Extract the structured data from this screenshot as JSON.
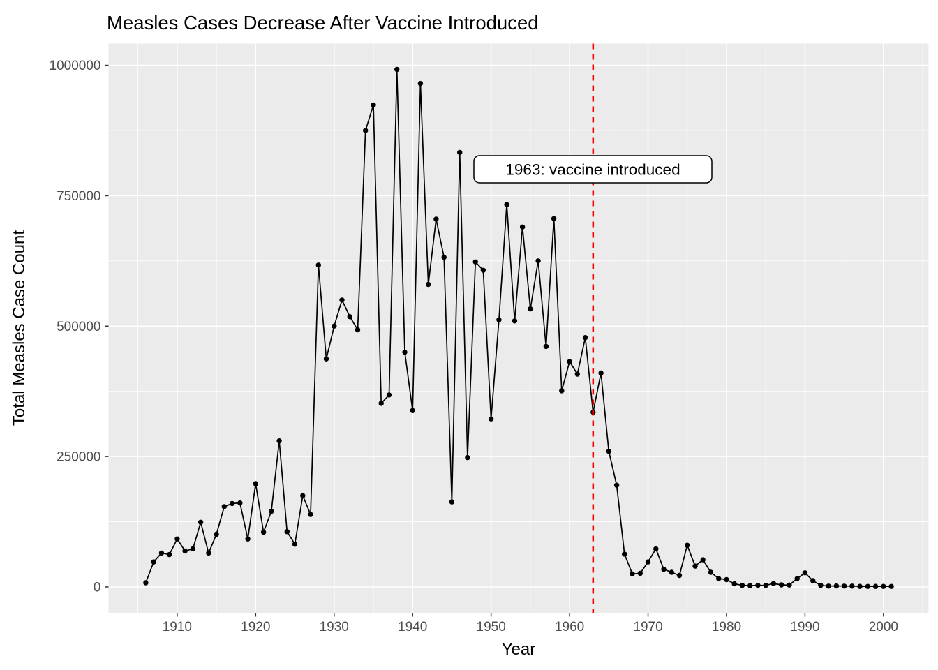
{
  "title": "Measles Cases Decrease After Vaccine Introduced",
  "annotation": {
    "text": "1963: vaccine introduced",
    "year": 1963
  },
  "vline": {
    "year": 1963,
    "color": "#FF0000",
    "style": "dashed"
  },
  "chart_data": {
    "type": "line",
    "title": "Measles Cases Decrease After Vaccine Introduced",
    "xlabel": "Year",
    "ylabel": "Total Measles Case Count",
    "legend": "none",
    "grid": true,
    "marker": "point",
    "series_color": "#000000",
    "panel_bg": "#EBEBEB",
    "grid_color": "#FFFFFF",
    "tick_text_color": "#4D4D4D",
    "xlim": [
      1901.25,
      2005.75
    ],
    "ylim": [
      -49550,
      1041550
    ],
    "x_ticks": [
      1910,
      1920,
      1930,
      1940,
      1950,
      1960,
      1970,
      1980,
      1990,
      2000
    ],
    "x_minor": [
      1905,
      1915,
      1925,
      1935,
      1945,
      1955,
      1965,
      1975,
      1985,
      1995,
      2005
    ],
    "y_ticks": [
      0,
      250000,
      500000,
      750000,
      1000000
    ],
    "y_tick_labels": [
      "0",
      "250000",
      "500000",
      "750000",
      "1000000"
    ],
    "y_minor": [
      125000,
      375000,
      625000,
      875000
    ],
    "x": [
      1906,
      1907,
      1908,
      1909,
      1910,
      1911,
      1912,
      1913,
      1914,
      1915,
      1916,
      1917,
      1918,
      1919,
      1920,
      1921,
      1922,
      1923,
      1924,
      1925,
      1926,
      1927,
      1928,
      1929,
      1930,
      1931,
      1932,
      1933,
      1934,
      1935,
      1936,
      1937,
      1938,
      1939,
      1940,
      1941,
      1942,
      1943,
      1944,
      1945,
      1946,
      1947,
      1948,
      1949,
      1950,
      1951,
      1952,
      1953,
      1954,
      1955,
      1956,
      1957,
      1958,
      1959,
      1960,
      1961,
      1962,
      1963,
      1964,
      1965,
      1966,
      1967,
      1968,
      1969,
      1970,
      1971,
      1972,
      1973,
      1974,
      1975,
      1976,
      1977,
      1978,
      1979,
      1980,
      1981,
      1982,
      1983,
      1984,
      1985,
      1986,
      1987,
      1988,
      1989,
      1990,
      1991,
      1992,
      1993,
      1994,
      1995,
      1996,
      1997,
      1998,
      1999,
      2000,
      2001
    ],
    "y": [
      8000,
      48000,
      65000,
      62000,
      92000,
      69000,
      73000,
      124000,
      65000,
      101000,
      154000,
      160000,
      161000,
      92000,
      198000,
      105000,
      145000,
      280000,
      106000,
      82000,
      175000,
      139000,
      617000,
      437000,
      500000,
      550000,
      518000,
      493000,
      875000,
      924000,
      352000,
      368000,
      992000,
      450000,
      338000,
      965000,
      580000,
      705000,
      632000,
      163000,
      833000,
      248000,
      623000,
      607000,
      322000,
      512000,
      733000,
      510000,
      690000,
      533000,
      625000,
      461000,
      706000,
      376000,
      432000,
      408000,
      478000,
      335000,
      410000,
      260000,
      195000,
      63000,
      25000,
      26000,
      48000,
      73000,
      34000,
      28000,
      22000,
      80000,
      40000,
      52000,
      28000,
      16000,
      14000,
      6000,
      3000,
      2500,
      3000,
      3000,
      6500,
      4000,
      3500,
      16000,
      27000,
      12000,
      3000,
      1500,
      2000,
      1500,
      1500,
      1000,
      1000,
      1000,
      1000,
      1000
    ]
  }
}
